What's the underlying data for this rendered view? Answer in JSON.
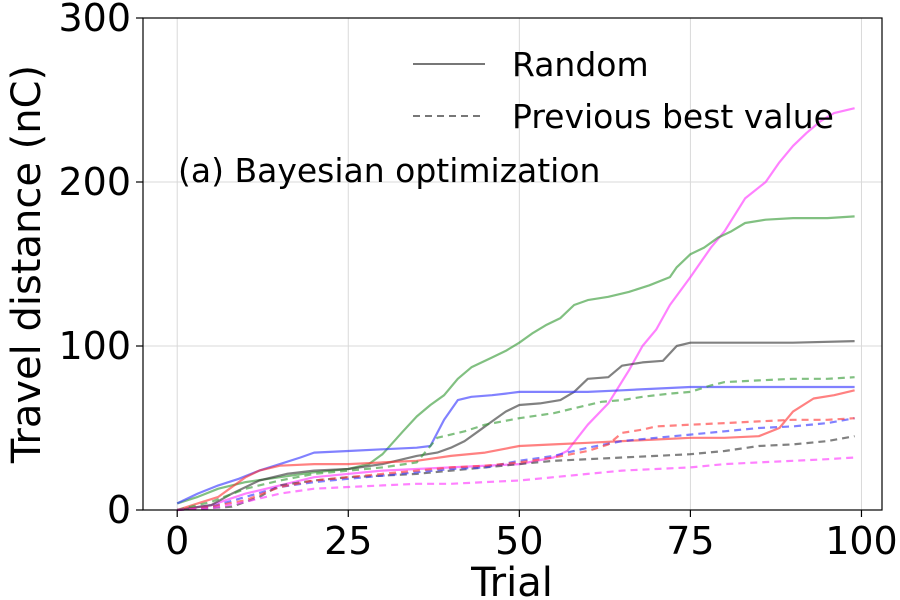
{
  "chart_data": {
    "type": "line",
    "title": "",
    "annotation": "(a) Bayesian optimization",
    "xlabel": "Trial",
    "ylabel": "Travel distance (nC)",
    "xlim": [
      -5,
      103
    ],
    "ylim": [
      0,
      300
    ],
    "xticks": [
      0,
      25,
      50,
      75,
      100
    ],
    "yticks": [
      0,
      100,
      200,
      300
    ],
    "grid": true,
    "legend": {
      "placement": "top-right",
      "entries": [
        {
          "label": "Random",
          "style": "solid",
          "color": "#808080"
        },
        {
          "label": "Previous best value",
          "style": "dashed",
          "color": "#808080"
        }
      ]
    },
    "series": [
      {
        "color": "#ff33ff",
        "style": "solid",
        "points": [
          [
            0,
            0
          ],
          [
            5,
            3
          ],
          [
            10,
            10
          ],
          [
            20,
            20
          ],
          [
            30,
            24
          ],
          [
            40,
            26
          ],
          [
            50,
            28
          ],
          [
            55,
            32
          ],
          [
            57,
            36
          ],
          [
            60,
            52
          ],
          [
            63,
            65
          ],
          [
            66,
            85
          ],
          [
            68,
            100
          ],
          [
            70,
            110
          ],
          [
            72,
            125
          ],
          [
            75,
            142
          ],
          [
            78,
            160
          ],
          [
            80,
            170
          ],
          [
            83,
            190
          ],
          [
            86,
            200
          ],
          [
            88,
            212
          ],
          [
            90,
            222
          ],
          [
            92,
            230
          ],
          [
            94,
            237
          ],
          [
            96,
            242
          ],
          [
            99,
            245
          ]
        ]
      },
      {
        "color": "#339933",
        "style": "solid",
        "points": [
          [
            0,
            4
          ],
          [
            3,
            8
          ],
          [
            6,
            13
          ],
          [
            10,
            17
          ],
          [
            15,
            20
          ],
          [
            20,
            23
          ],
          [
            25,
            25
          ],
          [
            28,
            28
          ],
          [
            30,
            34
          ],
          [
            33,
            48
          ],
          [
            35,
            57
          ],
          [
            37,
            64
          ],
          [
            39,
            70
          ],
          [
            41,
            80
          ],
          [
            43,
            87
          ],
          [
            46,
            93
          ],
          [
            48,
            97
          ],
          [
            50,
            102
          ],
          [
            52,
            108
          ],
          [
            54,
            113
          ],
          [
            56,
            117
          ],
          [
            58,
            125
          ],
          [
            60,
            128
          ],
          [
            63,
            130
          ],
          [
            66,
            133
          ],
          [
            69,
            137
          ],
          [
            72,
            142
          ],
          [
            73,
            148
          ],
          [
            75,
            156
          ],
          [
            77,
            160
          ],
          [
            79,
            166
          ],
          [
            81,
            170
          ],
          [
            83,
            175
          ],
          [
            86,
            177
          ],
          [
            90,
            178
          ],
          [
            95,
            178
          ],
          [
            99,
            179
          ]
        ]
      },
      {
        "color": "#333333",
        "style": "solid",
        "points": [
          [
            0,
            0
          ],
          [
            5,
            3
          ],
          [
            8,
            10
          ],
          [
            12,
            18
          ],
          [
            16,
            22
          ],
          [
            20,
            24
          ],
          [
            25,
            25
          ],
          [
            30,
            28
          ],
          [
            35,
            33
          ],
          [
            38,
            35
          ],
          [
            40,
            38
          ],
          [
            42,
            42
          ],
          [
            44,
            48
          ],
          [
            46,
            54
          ],
          [
            48,
            60
          ],
          [
            50,
            64
          ],
          [
            53,
            65
          ],
          [
            56,
            67
          ],
          [
            58,
            72
          ],
          [
            60,
            80
          ],
          [
            63,
            81
          ],
          [
            65,
            88
          ],
          [
            68,
            90
          ],
          [
            71,
            91
          ],
          [
            73,
            100
          ],
          [
            75,
            102
          ],
          [
            80,
            102
          ],
          [
            90,
            102
          ],
          [
            99,
            103
          ]
        ]
      },
      {
        "color": "#3333ff",
        "style": "solid",
        "points": [
          [
            0,
            4
          ],
          [
            3,
            10
          ],
          [
            6,
            15
          ],
          [
            9,
            19
          ],
          [
            12,
            24
          ],
          [
            15,
            28
          ],
          [
            18,
            32
          ],
          [
            20,
            35
          ],
          [
            25,
            36
          ],
          [
            30,
            37
          ],
          [
            35,
            38
          ],
          [
            37,
            39
          ],
          [
            39,
            55
          ],
          [
            41,
            67
          ],
          [
            43,
            69
          ],
          [
            46,
            70
          ],
          [
            48,
            71
          ],
          [
            50,
            72
          ],
          [
            55,
            72
          ],
          [
            60,
            72
          ],
          [
            65,
            73
          ],
          [
            70,
            74
          ],
          [
            75,
            75
          ],
          [
            80,
            75
          ],
          [
            90,
            75
          ],
          [
            99,
            75
          ]
        ]
      },
      {
        "color": "#ff3333",
        "style": "solid",
        "points": [
          [
            0,
            0
          ],
          [
            3,
            4
          ],
          [
            6,
            8
          ],
          [
            10,
            20
          ],
          [
            12,
            24
          ],
          [
            15,
            27
          ],
          [
            20,
            28
          ],
          [
            25,
            28
          ],
          [
            30,
            29
          ],
          [
            35,
            30
          ],
          [
            40,
            33
          ],
          [
            45,
            35
          ],
          [
            50,
            39
          ],
          [
            55,
            40
          ],
          [
            60,
            41
          ],
          [
            65,
            42
          ],
          [
            70,
            43
          ],
          [
            75,
            44
          ],
          [
            80,
            44
          ],
          [
            85,
            45
          ],
          [
            88,
            50
          ],
          [
            90,
            60
          ],
          [
            93,
            68
          ],
          [
            96,
            70
          ],
          [
            99,
            73
          ]
        ]
      },
      {
        "color": "#339933",
        "style": "dashed",
        "points": [
          [
            0,
            0
          ],
          [
            5,
            5
          ],
          [
            10,
            13
          ],
          [
            15,
            18
          ],
          [
            20,
            22
          ],
          [
            25,
            24
          ],
          [
            30,
            26
          ],
          [
            35,
            29
          ],
          [
            38,
            44
          ],
          [
            42,
            48
          ],
          [
            45,
            52
          ],
          [
            50,
            56
          ],
          [
            55,
            59
          ],
          [
            58,
            62
          ],
          [
            62,
            66
          ],
          [
            65,
            67
          ],
          [
            68,
            69
          ],
          [
            72,
            71
          ],
          [
            75,
            72
          ],
          [
            78,
            76
          ],
          [
            80,
            78
          ],
          [
            85,
            79
          ],
          [
            90,
            80
          ],
          [
            95,
            80
          ],
          [
            99,
            81
          ]
        ]
      },
      {
        "color": "#333333",
        "style": "dashed",
        "points": [
          [
            0,
            0
          ],
          [
            8,
            2
          ],
          [
            12,
            8
          ],
          [
            15,
            15
          ],
          [
            20,
            18
          ],
          [
            25,
            20
          ],
          [
            30,
            21
          ],
          [
            35,
            22
          ],
          [
            40,
            24
          ],
          [
            45,
            26
          ],
          [
            50,
            28
          ],
          [
            55,
            30
          ],
          [
            60,
            31
          ],
          [
            65,
            32
          ],
          [
            70,
            33
          ],
          [
            75,
            34
          ],
          [
            80,
            36
          ],
          [
            85,
            39
          ],
          [
            90,
            40
          ],
          [
            95,
            42
          ],
          [
            99,
            45
          ]
        ]
      },
      {
        "color": "#3333ff",
        "style": "dashed",
        "points": [
          [
            0,
            0
          ],
          [
            5,
            2
          ],
          [
            10,
            8
          ],
          [
            15,
            14
          ],
          [
            20,
            17
          ],
          [
            25,
            19
          ],
          [
            30,
            21
          ],
          [
            35,
            23
          ],
          [
            40,
            25
          ],
          [
            45,
            26
          ],
          [
            50,
            30
          ],
          [
            55,
            33
          ],
          [
            60,
            38
          ],
          [
            65,
            42
          ],
          [
            70,
            44
          ],
          [
            75,
            46
          ],
          [
            80,
            48
          ],
          [
            85,
            50
          ],
          [
            90,
            51
          ],
          [
            95,
            53
          ],
          [
            99,
            56
          ]
        ]
      },
      {
        "color": "#ff3333",
        "style": "dashed",
        "points": [
          [
            0,
            0
          ],
          [
            5,
            2
          ],
          [
            10,
            6
          ],
          [
            15,
            14
          ],
          [
            20,
            18
          ],
          [
            25,
            20
          ],
          [
            30,
            22
          ],
          [
            35,
            24
          ],
          [
            40,
            26
          ],
          [
            45,
            27
          ],
          [
            50,
            29
          ],
          [
            55,
            32
          ],
          [
            60,
            36
          ],
          [
            63,
            40
          ],
          [
            65,
            47
          ],
          [
            68,
            49
          ],
          [
            70,
            51
          ],
          [
            75,
            52
          ],
          [
            80,
            53
          ],
          [
            85,
            54
          ],
          [
            90,
            55
          ],
          [
            95,
            55
          ],
          [
            99,
            56
          ]
        ]
      },
      {
        "color": "#ff33ff",
        "style": "dashed",
        "points": [
          [
            0,
            0
          ],
          [
            5,
            1
          ],
          [
            10,
            5
          ],
          [
            15,
            10
          ],
          [
            20,
            13
          ],
          [
            25,
            14
          ],
          [
            30,
            15
          ],
          [
            35,
            16
          ],
          [
            40,
            16
          ],
          [
            45,
            17
          ],
          [
            50,
            18
          ],
          [
            55,
            20
          ],
          [
            60,
            22
          ],
          [
            65,
            24
          ],
          [
            70,
            25
          ],
          [
            75,
            26
          ],
          [
            80,
            28
          ],
          [
            85,
            29
          ],
          [
            90,
            30
          ],
          [
            95,
            31
          ],
          [
            99,
            32
          ]
        ]
      }
    ]
  }
}
